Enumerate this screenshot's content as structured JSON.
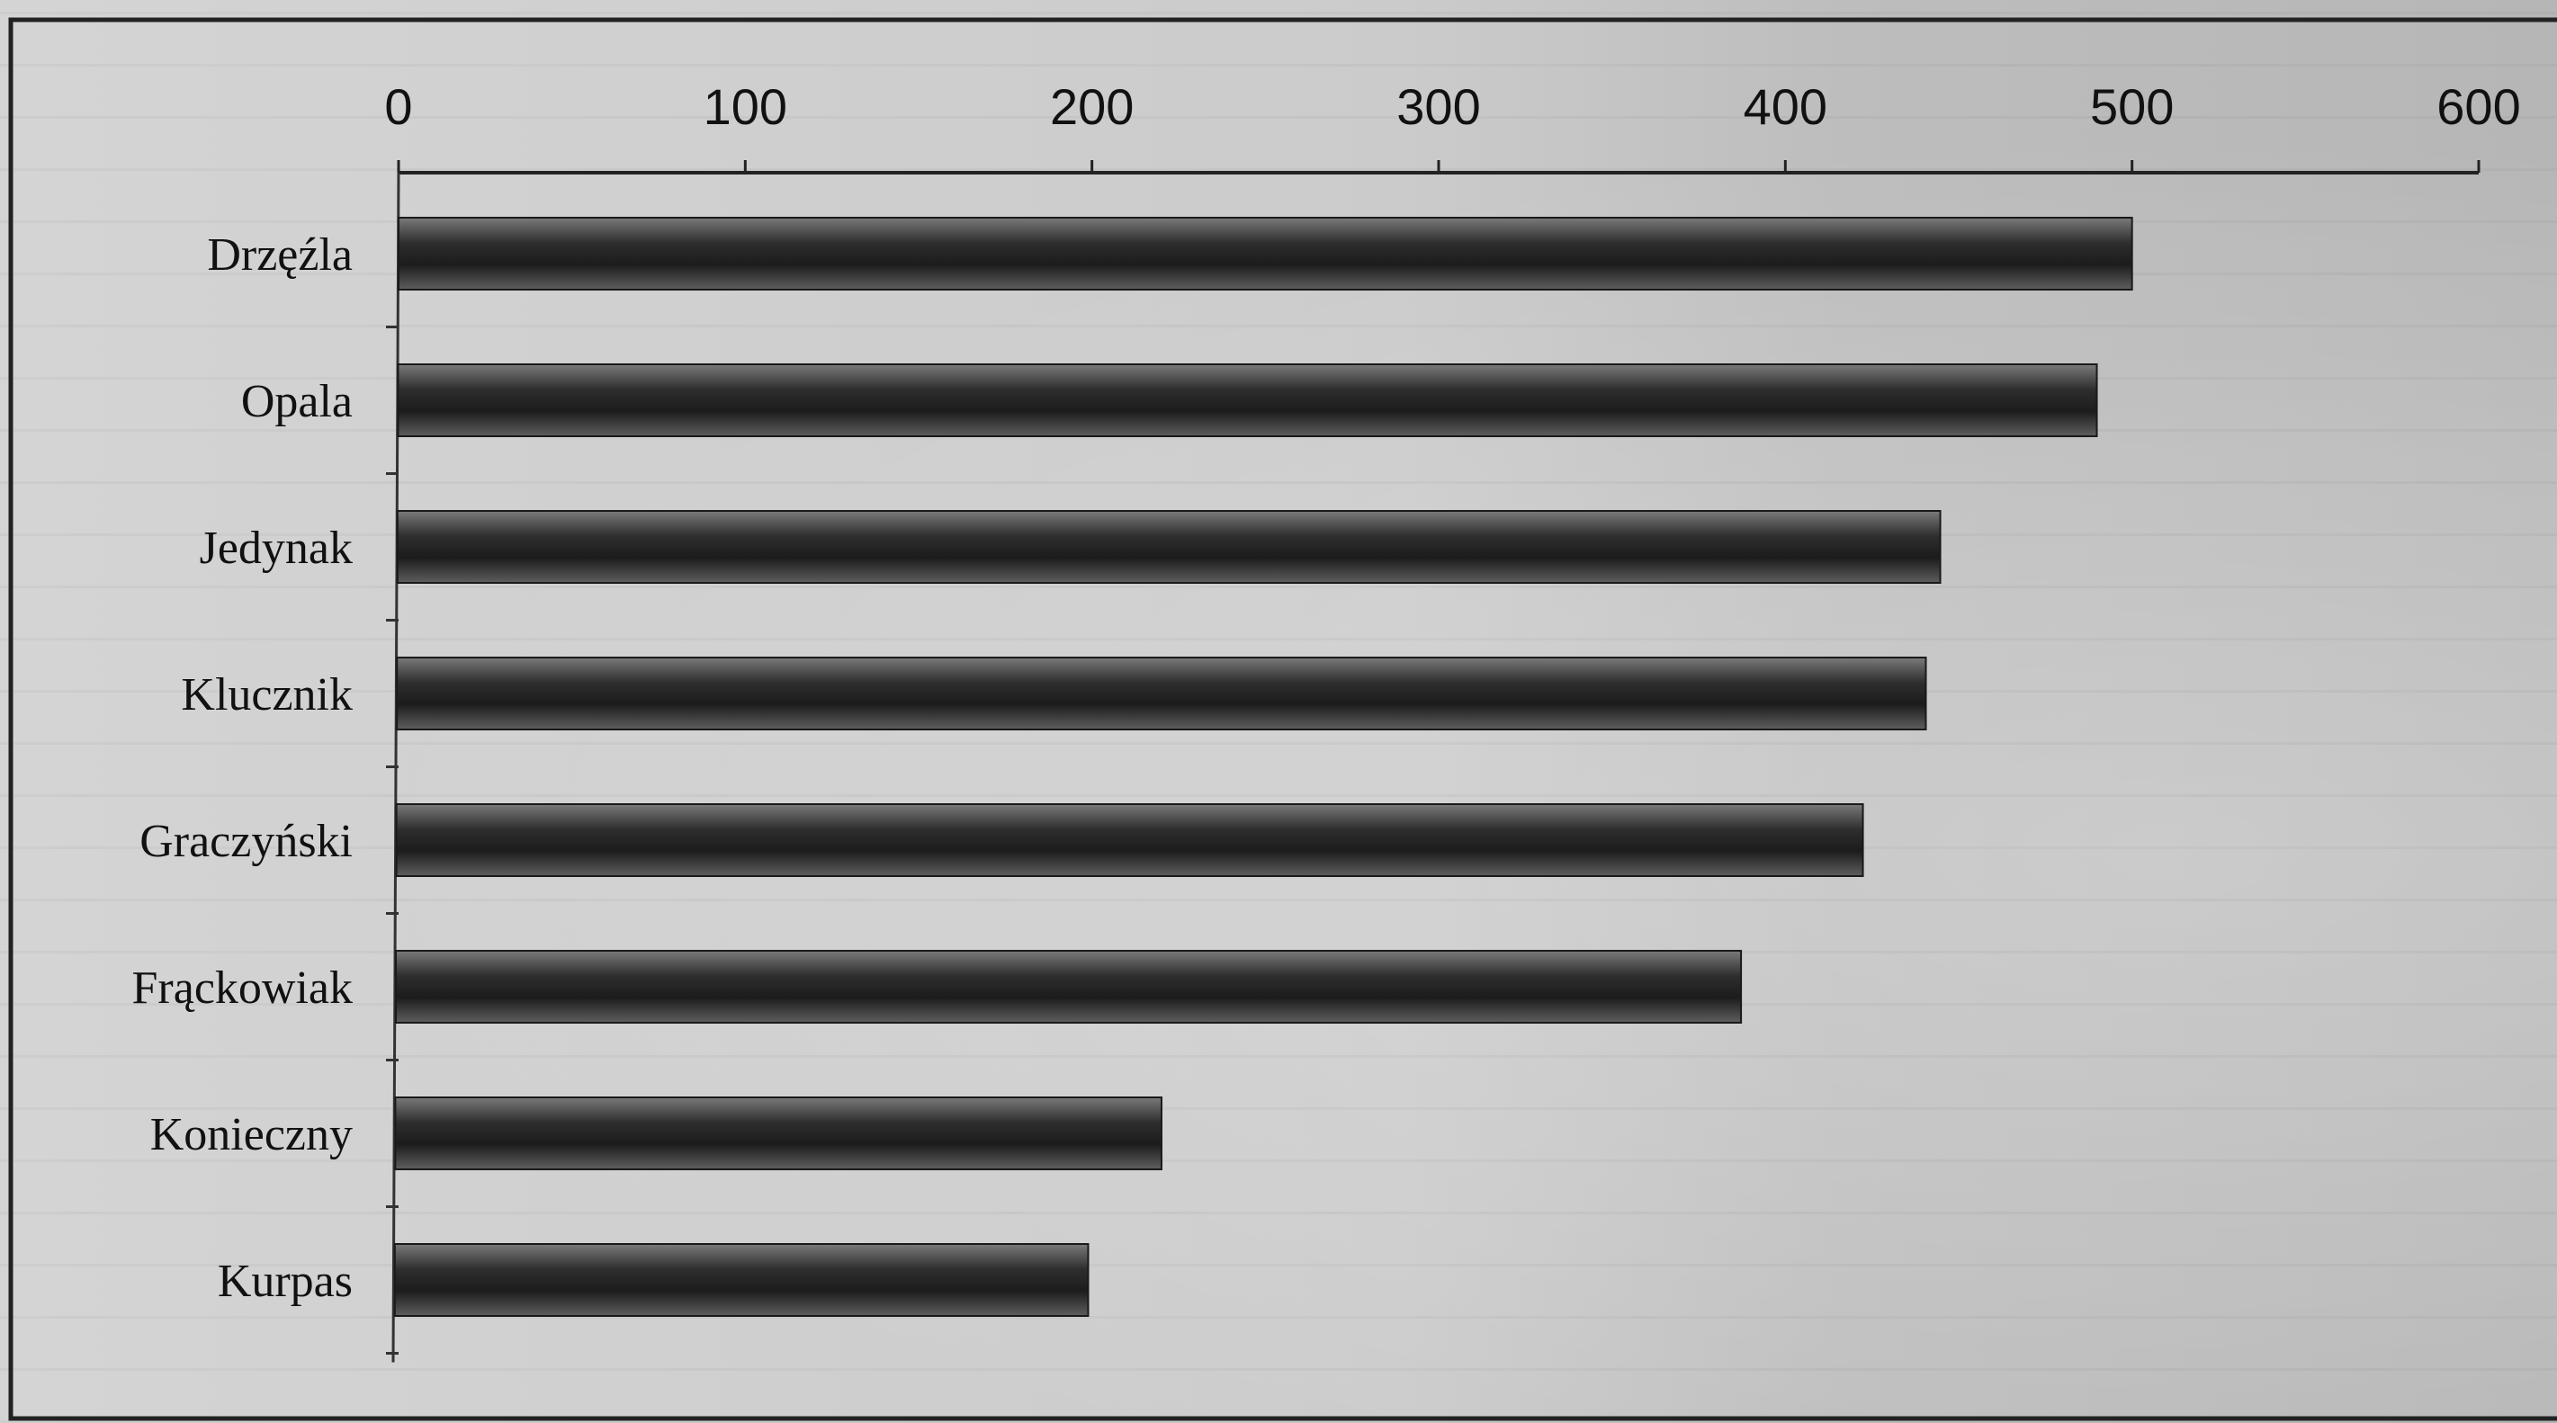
{
  "chart_data": {
    "type": "bar",
    "orientation": "horizontal",
    "categories": [
      "Drzęźla",
      "Opala",
      "Jedynak",
      "Klucznik",
      "Graczyński",
      "Frąckowiak",
      "Konieczny",
      "Kurpas"
    ],
    "values": [
      500,
      490,
      445,
      441,
      423,
      388,
      221,
      200
    ],
    "xlim": [
      0,
      600
    ],
    "x_ticks": [
      "0",
      "100",
      "200",
      "300",
      "400",
      "500",
      "600"
    ],
    "x_tick_values": [
      0,
      100,
      200,
      300,
      400,
      500,
      600
    ],
    "axis_position": "top",
    "grid": false,
    "bar_color": "#3a3a3a",
    "title": "",
    "xlabel": "",
    "ylabel": ""
  }
}
